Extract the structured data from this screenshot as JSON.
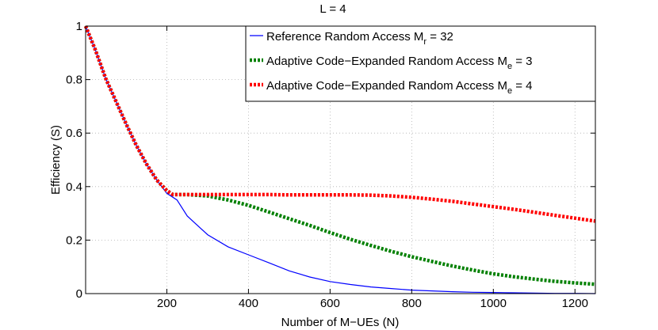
{
  "chart_data": {
    "type": "line",
    "title": "L = 4",
    "xlabel": "Number of M−UEs (N)",
    "ylabel": "Efficiency (S)",
    "xlim": [
      1,
      1250
    ],
    "ylim": [
      0,
      1
    ],
    "xticks": [
      200,
      400,
      600,
      800,
      1000,
      1200
    ],
    "xtick_labels": [
      "200",
      "400",
      "600",
      "800",
      "1000",
      "1200"
    ],
    "yticks": [
      0,
      0.2,
      0.4,
      0.6,
      0.8,
      1
    ],
    "ytick_labels": [
      "0",
      "0.2",
      "0.4",
      "0.6",
      "0.8",
      "1"
    ],
    "grid": true,
    "legend_position": "top-right",
    "series": [
      {
        "legend_text": "Reference Random Access M",
        "legend_sub": "r",
        "legend_suffix": " = 32",
        "color": "#0000ff",
        "style": "solid",
        "x": [
          1,
          25,
          50,
          75,
          100,
          125,
          150,
          175,
          200,
          225,
          250,
          300,
          350,
          400,
          450,
          500,
          550,
          600,
          650,
          700,
          750,
          800,
          850,
          900,
          950,
          1000,
          1050,
          1100,
          1150,
          1200,
          1250
        ],
        "y": [
          1.0,
          0.91,
          0.805,
          0.72,
          0.635,
          0.555,
          0.485,
          0.425,
          0.375,
          0.35,
          0.29,
          0.22,
          0.175,
          0.145,
          0.115,
          0.085,
          0.062,
          0.045,
          0.034,
          0.025,
          0.019,
          0.013,
          0.01,
          0.007,
          0.005,
          0.004,
          0.003,
          0.002,
          0.001,
          0.001,
          0.0
        ]
      },
      {
        "legend_text": "Adaptive Code−Expanded Random Access M",
        "legend_sub": "e",
        "legend_suffix": " = 3",
        "color": "#008000",
        "style": "dotted",
        "x": [
          1,
          25,
          50,
          75,
          100,
          125,
          150,
          175,
          200,
          215,
          250,
          300,
          350,
          400,
          450,
          500,
          550,
          600,
          650,
          700,
          750,
          800,
          850,
          900,
          950,
          1000,
          1050,
          1100,
          1150,
          1200,
          1250
        ],
        "y": [
          1.0,
          0.91,
          0.805,
          0.72,
          0.635,
          0.555,
          0.485,
          0.425,
          0.385,
          0.37,
          0.37,
          0.365,
          0.35,
          0.33,
          0.305,
          0.28,
          0.255,
          0.228,
          0.203,
          0.18,
          0.158,
          0.138,
          0.12,
          0.103,
          0.088,
          0.074,
          0.063,
          0.054,
          0.046,
          0.04,
          0.035
        ]
      },
      {
        "legend_text": "Adaptive Code−Expanded Random Access M",
        "legend_sub": "e",
        "legend_suffix": " = 4",
        "color": "#ff0000",
        "style": "dotted",
        "x": [
          1,
          25,
          50,
          75,
          100,
          125,
          150,
          175,
          200,
          215,
          250,
          300,
          350,
          400,
          450,
          500,
          550,
          600,
          650,
          700,
          750,
          800,
          850,
          900,
          950,
          1000,
          1050,
          1100,
          1150,
          1200,
          1250
        ],
        "y": [
          1.0,
          0.91,
          0.805,
          0.72,
          0.635,
          0.555,
          0.485,
          0.425,
          0.385,
          0.37,
          0.37,
          0.37,
          0.37,
          0.37,
          0.37,
          0.369,
          0.369,
          0.369,
          0.369,
          0.368,
          0.365,
          0.36,
          0.353,
          0.345,
          0.335,
          0.325,
          0.315,
          0.304,
          0.293,
          0.282,
          0.271
        ]
      }
    ]
  }
}
